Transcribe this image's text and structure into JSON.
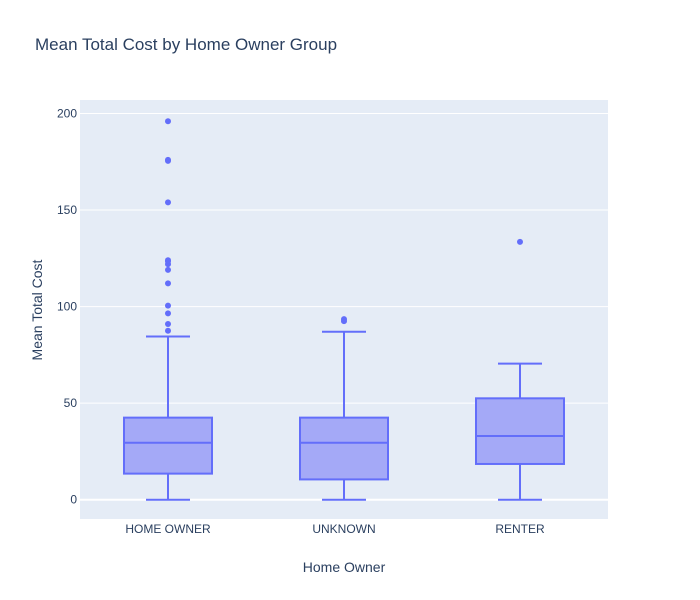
{
  "chart_data": {
    "type": "box",
    "title": "Mean Total Cost by Home Owner Group",
    "xlabel": "Home Owner",
    "ylabel": "Mean Total Cost",
    "ylim": [
      -10,
      207
    ],
    "yticks": [
      0,
      50,
      100,
      150,
      200
    ],
    "grid": true,
    "categories": [
      "HOME OWNER",
      "UNKNOWN",
      "RENTER"
    ],
    "boxes": [
      {
        "category": "HOME OWNER",
        "min": 0,
        "q1": 13.5,
        "median": 29.5,
        "q3": 42.5,
        "max": 84.5,
        "outliers": [
          87.5,
          91,
          96.5,
          100.5,
          112,
          119,
          122,
          123.5,
          124,
          154,
          175.5,
          176,
          196
        ]
      },
      {
        "category": "UNKNOWN",
        "min": 0,
        "q1": 10.5,
        "median": 29.5,
        "q3": 42.5,
        "max": 87,
        "outliers": [
          92.5,
          93.5
        ]
      },
      {
        "category": "RENTER",
        "min": 0,
        "q1": 18.5,
        "median": 33,
        "q3": 52.5,
        "max": 70.5,
        "outliers": [
          133.5
        ]
      }
    ],
    "colors": {
      "line": "#636efa",
      "fill": "#a4a9f7",
      "plot_bg": "#e5ecf6",
      "grid": "#ffffff",
      "text": "#2a3f5f"
    }
  }
}
